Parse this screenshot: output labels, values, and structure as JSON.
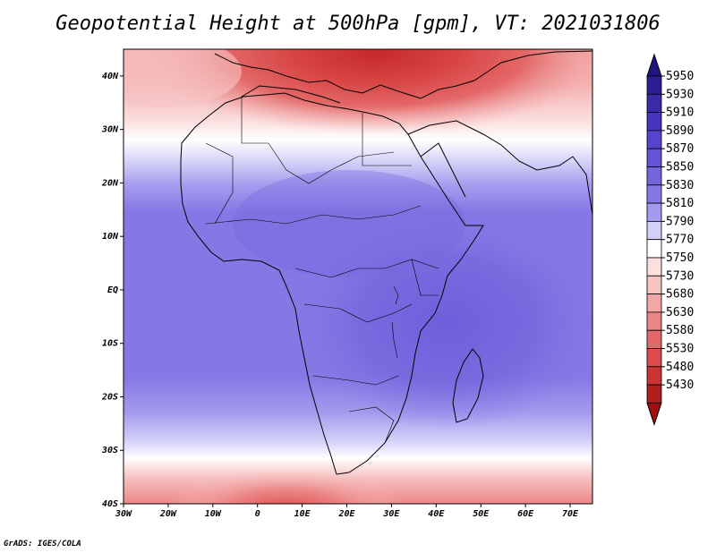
{
  "title": "Geopotential Height at 500hPa [gpm], VT: 2021031806",
  "credit": "GrADS: IGES/COLA",
  "map": {
    "variable": "Geopotential Height",
    "level": "500hPa",
    "units": "gpm",
    "valid_time": "2021031806",
    "lon_range": [
      -30,
      75
    ],
    "lat_range": [
      -40,
      45
    ],
    "lat_ticks": [
      {
        "value": 40,
        "label": "40N"
      },
      {
        "value": 30,
        "label": "30N"
      },
      {
        "value": 20,
        "label": "20N"
      },
      {
        "value": 10,
        "label": "10N"
      },
      {
        "value": 0,
        "label": "EQ"
      },
      {
        "value": -10,
        "label": "10S"
      },
      {
        "value": -20,
        "label": "20S"
      },
      {
        "value": -30,
        "label": "30S"
      },
      {
        "value": -40,
        "label": "40S"
      }
    ],
    "lon_ticks": [
      {
        "value": -30,
        "label": "30W"
      },
      {
        "value": -20,
        "label": "20W"
      },
      {
        "value": -10,
        "label": "10W"
      },
      {
        "value": 0,
        "label": "0"
      },
      {
        "value": 10,
        "label": "10E"
      },
      {
        "value": 20,
        "label": "20E"
      },
      {
        "value": 30,
        "label": "30E"
      },
      {
        "value": 40,
        "label": "40E"
      },
      {
        "value": 50,
        "label": "50E"
      },
      {
        "value": 60,
        "label": "60E"
      },
      {
        "value": 70,
        "label": "70E"
      }
    ]
  },
  "colorbar": {
    "levels": [
      {
        "label": "5950",
        "color": "#2e1e96"
      },
      {
        "label": "5930",
        "color": "#3a2aaa"
      },
      {
        "label": "5910",
        "color": "#4735bf"
      },
      {
        "label": "5890",
        "color": "#5644cc"
      },
      {
        "label": "5870",
        "color": "#6455d6"
      },
      {
        "label": "5850",
        "color": "#7366dd"
      },
      {
        "label": "5830",
        "color": "#8577e4"
      },
      {
        "label": "5810",
        "color": "#a49bee"
      },
      {
        "label": "5790",
        "color": "#d2cff8"
      },
      {
        "label": "5770",
        "color": "#ffffff"
      },
      {
        "label": "5750",
        "color": "#fbe0e0"
      },
      {
        "label": "5730",
        "color": "#f7c4c4"
      },
      {
        "label": "5680",
        "color": "#f2a6a6"
      },
      {
        "label": "5630",
        "color": "#ec8686"
      },
      {
        "label": "5580",
        "color": "#e46868"
      },
      {
        "label": "5530",
        "color": "#dc4c4c"
      },
      {
        "label": "5480",
        "color": "#cc3434"
      },
      {
        "label": "5430",
        "color": "#b01e1e"
      }
    ],
    "top_color": "#1f1480",
    "bottom_color": "#a01010"
  }
}
